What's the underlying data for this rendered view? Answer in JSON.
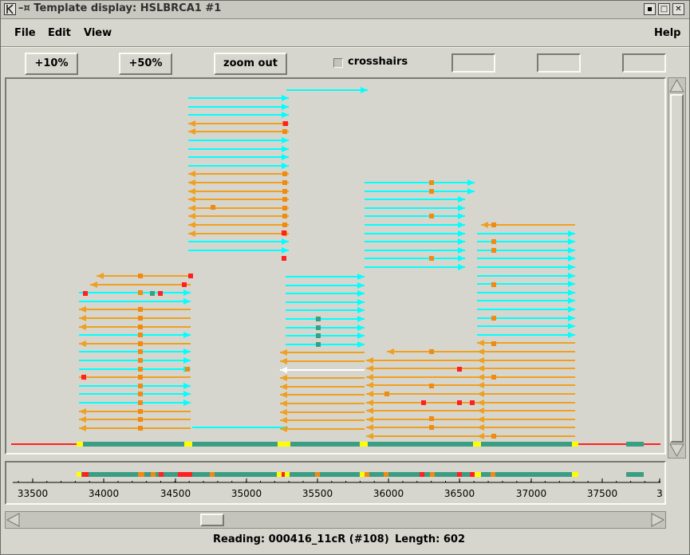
{
  "window": {
    "title": "Template display: HSLBRCA1 #1",
    "controls": [
      "minimize-icon",
      "maximize-icon",
      "close-icon"
    ]
  },
  "menu": {
    "file": "File",
    "edit": "Edit",
    "view": "View",
    "help": "Help"
  },
  "toolbar": {
    "zoom10": "+10%",
    "zoom50": "+50%",
    "zoom_out": "zoom out",
    "crosshairs": "crosshairs",
    "crosshairs_checked": false,
    "fields": [
      "",
      "",
      ""
    ]
  },
  "ruler": {
    "ticks": [
      "33500",
      "34000",
      "34500",
      "35000",
      "35500",
      "36000",
      "36500",
      "37000",
      "37500",
      "3"
    ]
  },
  "status": {
    "reading": "Reading: 000416_11cR (#108)",
    "length": "Length: 602"
  },
  "colors": {
    "forward": "#00ffff",
    "reverse": "#f0a020",
    "highlight": "#ffffff",
    "consensus": "#3a9e85",
    "baseline": "#ff2020",
    "tag_orange": "#f08a10",
    "tag_red": "#ff2020",
    "tag_yellow": "#ffff00"
  }
}
